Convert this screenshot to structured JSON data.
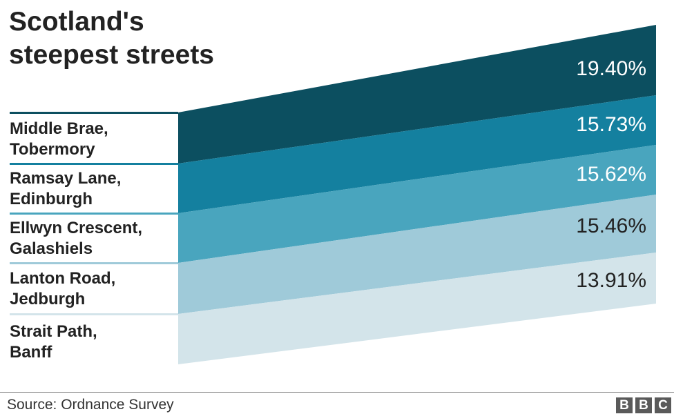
{
  "title": {
    "line1": "Scotland's",
    "line2": "steepest streets"
  },
  "chart_data": {
    "type": "area",
    "title": "Scotland's steepest streets",
    "categories": [
      {
        "line1": "Middle Brae,",
        "line2": "Tobermory"
      },
      {
        "line1": "Ramsay Lane,",
        "line2": "Edinburgh"
      },
      {
        "line1": "Ellwyn Crescent,",
        "line2": "Galashiels"
      },
      {
        "line1": "Lanton Road,",
        "line2": "Jedburgh"
      },
      {
        "line1": "Strait Path,",
        "line2": "Banff"
      }
    ],
    "values": [
      19.4,
      15.73,
      15.62,
      15.46,
      13.91
    ],
    "value_labels": [
      "19.40%",
      "15.73%",
      "15.62%",
      "15.46%",
      "13.91%"
    ],
    "unit": "%",
    "colors": [
      "#0c4f60",
      "#14809f",
      "#49a5be",
      "#9fcad9",
      "#d3e4ea"
    ],
    "label_colors": [
      "#ffffff",
      "#ffffff",
      "#ffffff",
      "#222222",
      "#222222"
    ]
  },
  "footer": {
    "source": "Source: Ordnance Survey",
    "logo": [
      "B",
      "B",
      "C"
    ]
  }
}
